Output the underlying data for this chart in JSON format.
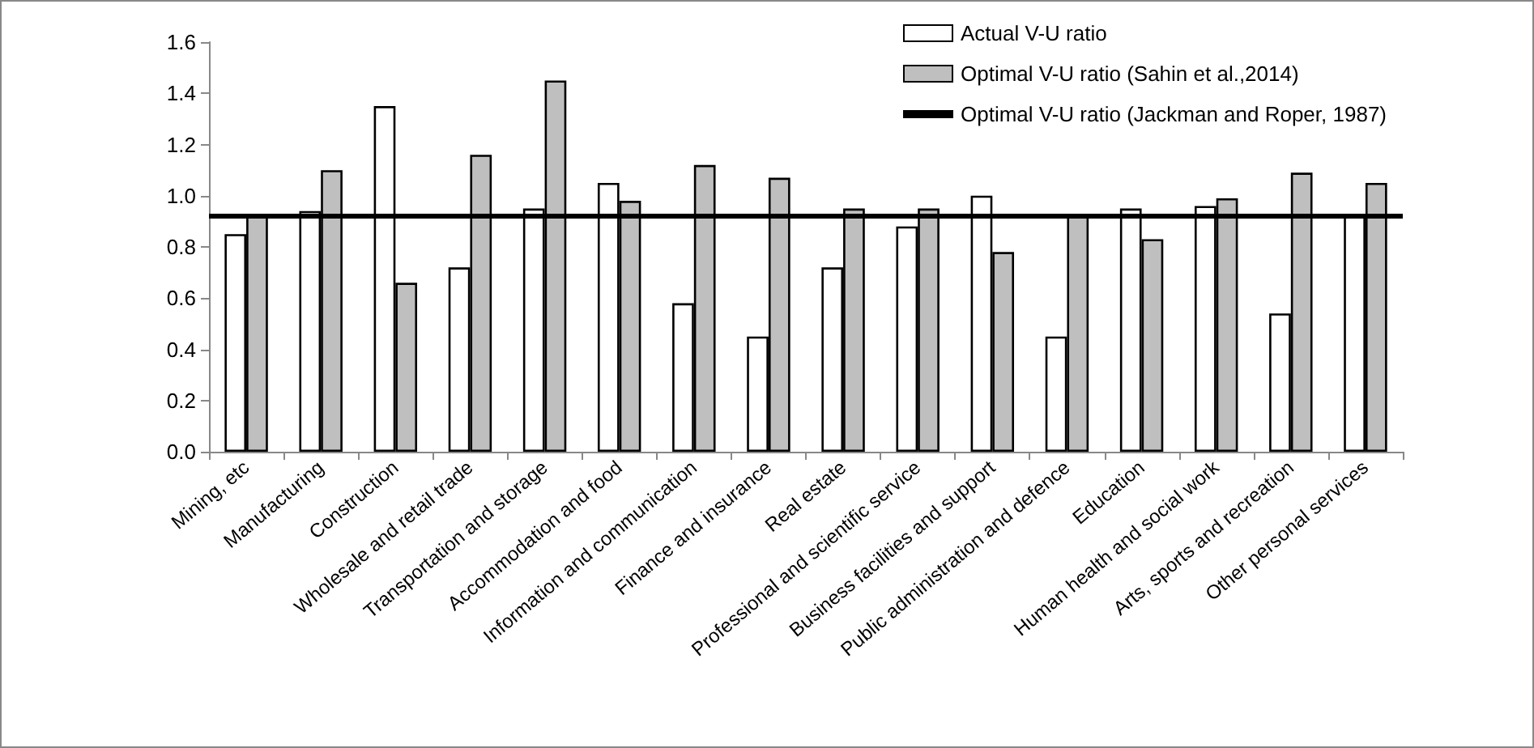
{
  "chart_data": {
    "type": "bar",
    "categories": [
      "Mining, etc",
      "Manufacturing",
      "Construction",
      "Wholesale and retail trade",
      "Transportation and storage",
      "Accommodation and food",
      "Information and communication",
      "Finance and insurance",
      "Real estate",
      "Professional and scientific service",
      "Business facilities and support",
      "Public administration and defence",
      "Education",
      "Human health and social work",
      "Arts, sports and recreation",
      "Other personal services"
    ],
    "series": [
      {
        "name": "Actual V-U ratio",
        "color": "#ffffff",
        "values": [
          0.85,
          0.94,
          1.35,
          0.72,
          0.95,
          1.05,
          0.58,
          0.45,
          0.72,
          0.88,
          1.0,
          0.45,
          0.95,
          0.96,
          0.54,
          0.92
        ]
      },
      {
        "name": "Optimal V-U ratio (Sahin et al.,2014)",
        "color": "#bfbfbf",
        "values": [
          0.93,
          1.1,
          0.66,
          1.16,
          1.45,
          0.98,
          1.12,
          1.07,
          0.95,
          0.95,
          0.78,
          0.93,
          0.83,
          0.99,
          1.09,
          1.05
        ]
      }
    ],
    "ref_lines": [
      {
        "axis": "y",
        "value": 0.92,
        "label": "Optimal V-U ratio (Jackman and Roper, 1987)",
        "color": "#000000"
      }
    ],
    "ylim": [
      0,
      1.6
    ],
    "yticks": [
      {
        "value": 0,
        "label": "0.0"
      },
      {
        "value": 0.2,
        "label": "0.2"
      },
      {
        "value": 0.4,
        "label": "0.4"
      },
      {
        "value": 0.6,
        "label": "0.6"
      },
      {
        "value": 0.8,
        "label": "0.8"
      },
      {
        "value": 1,
        "label": "1.0"
      },
      {
        "value": 1.2,
        "label": "1.2"
      },
      {
        "value": 1.4,
        "label": "1.4"
      },
      {
        "value": 1.6,
        "label": "1.6"
      }
    ],
    "grid": false,
    "legend": "top right"
  }
}
